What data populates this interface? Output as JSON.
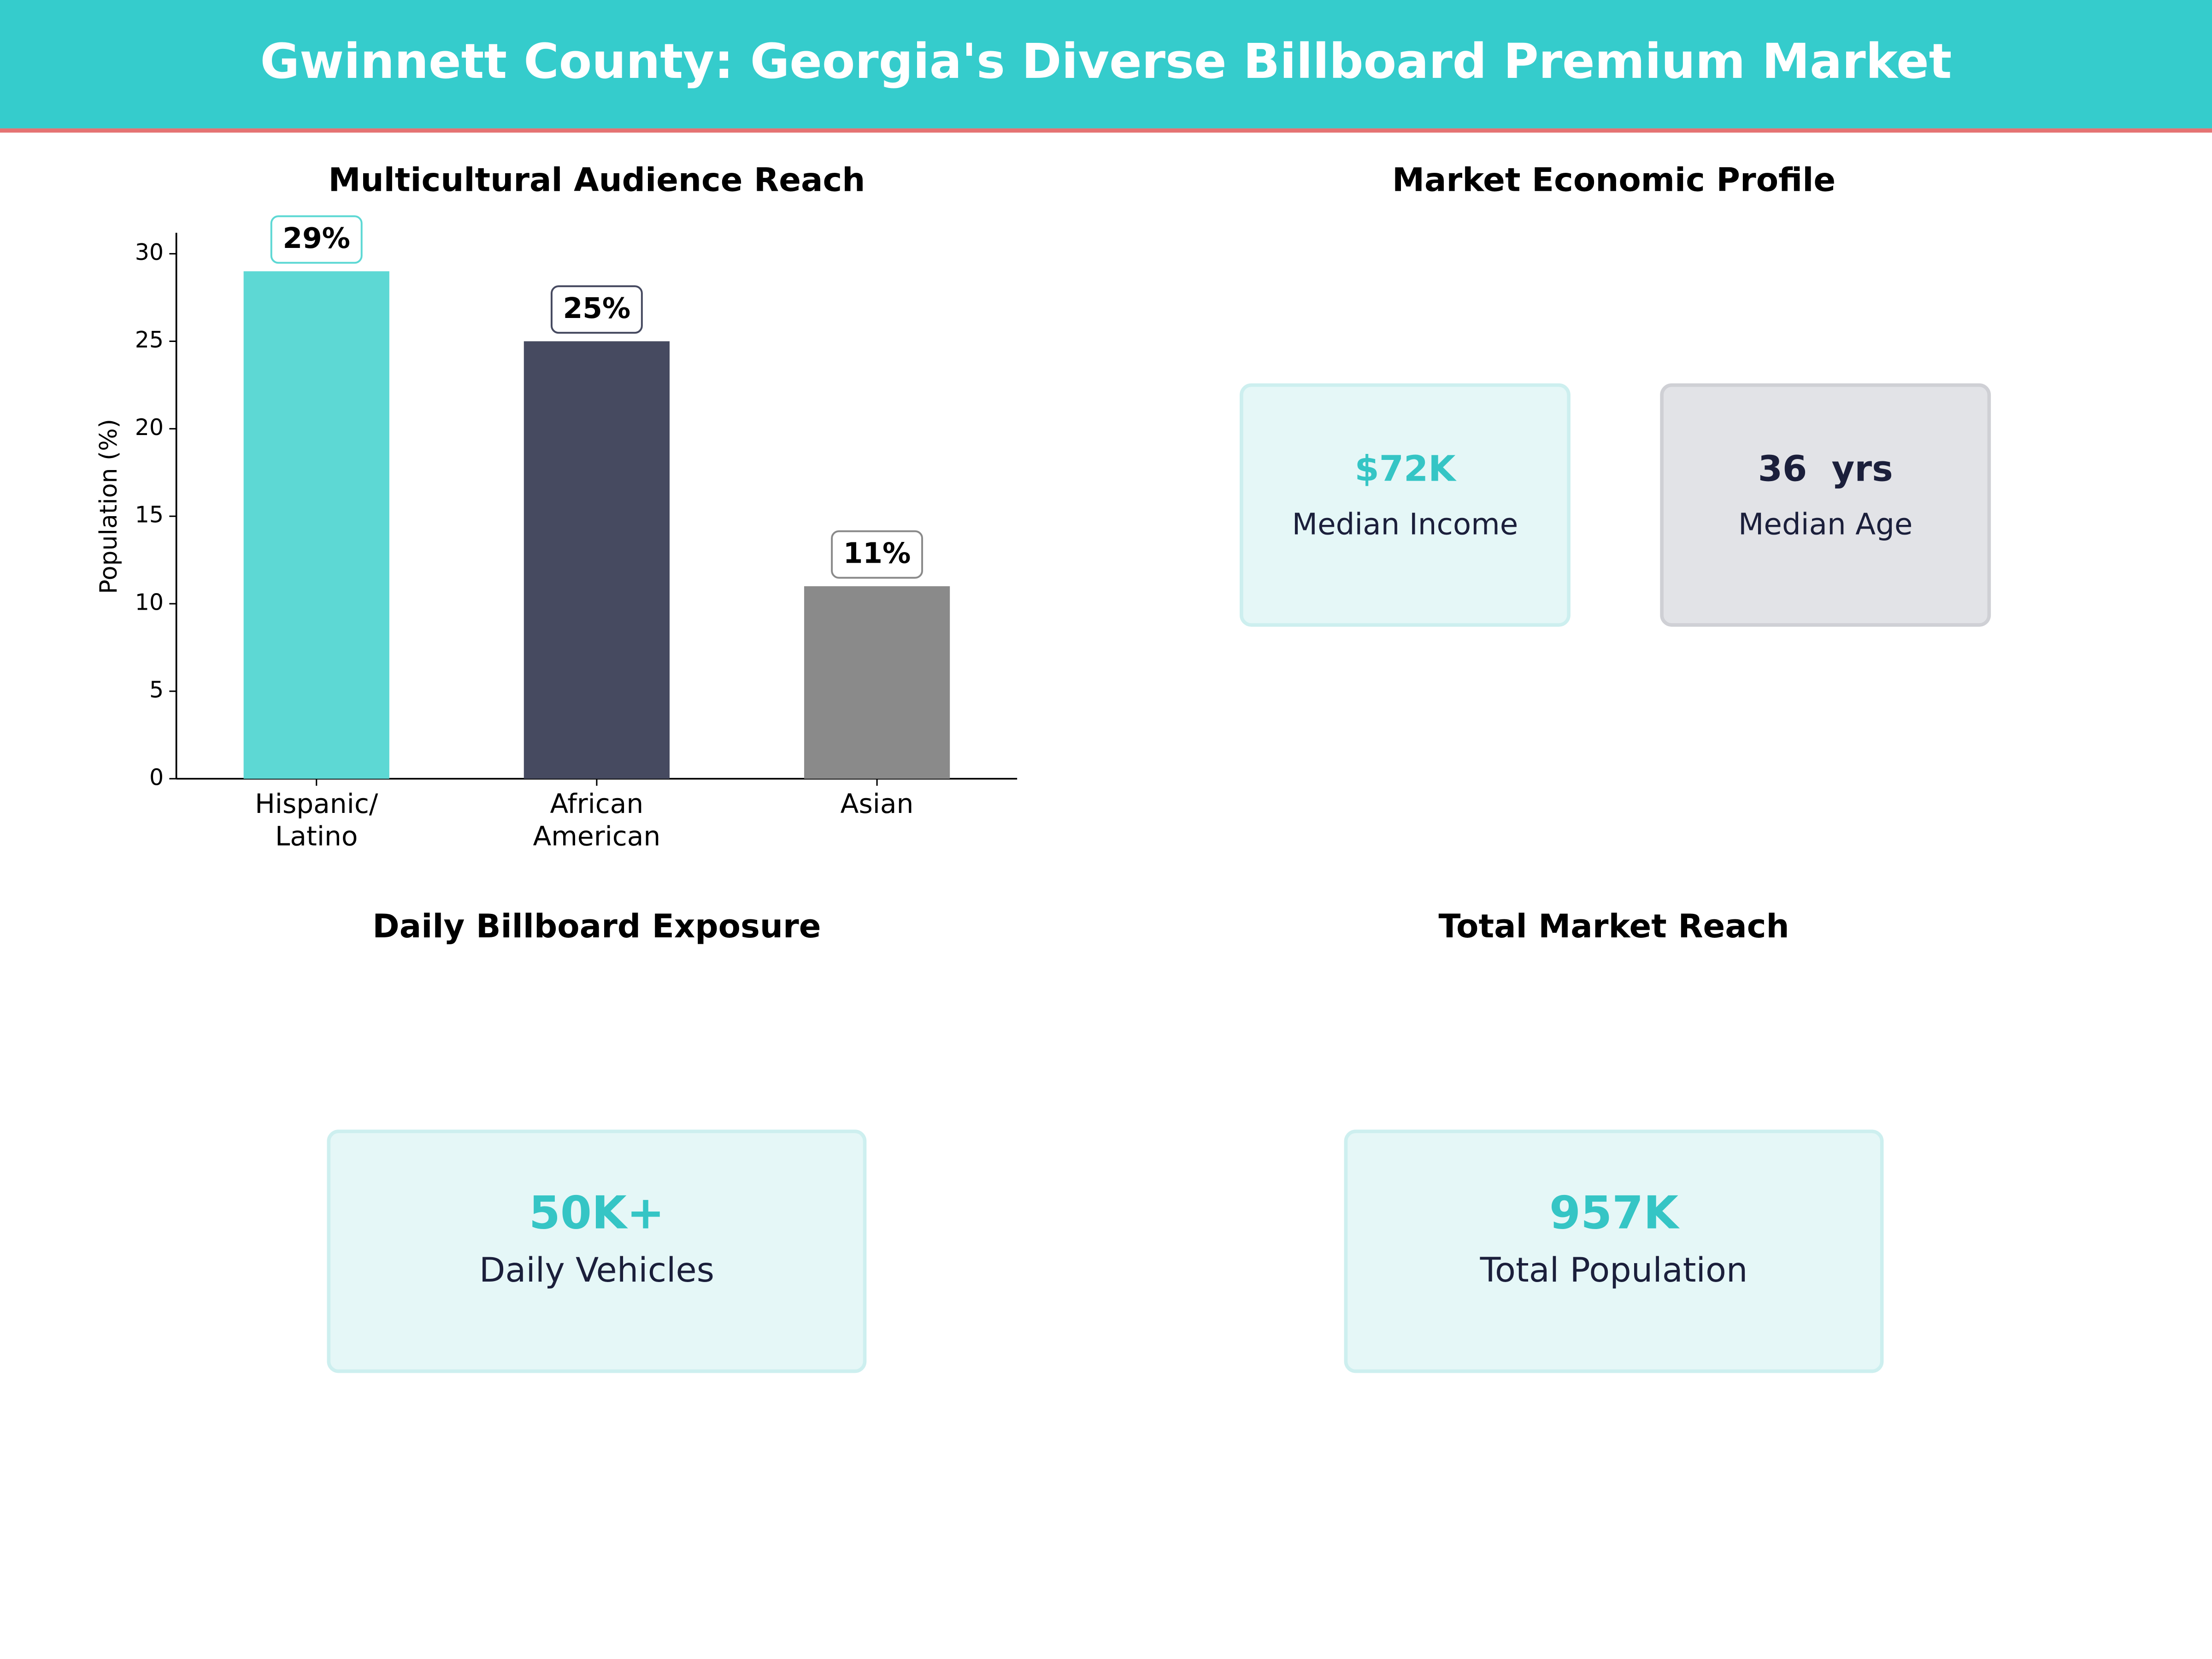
{
  "header": {
    "title": "Gwinnett County: Georgia's Diverse Billboard Premium Market"
  },
  "chart_data": {
    "type": "bar",
    "title": "Multicultural Audience Reach",
    "categories": [
      "Hispanic/\nLatino",
      "African\nAmerican",
      "Asian"
    ],
    "values": [
      29,
      25,
      11
    ],
    "value_labels": [
      "29%",
      "25%",
      "11%"
    ],
    "colors": [
      "#5DD8D4",
      "#464A60",
      "#8A8A8A"
    ],
    "ylabel": "Population (%)",
    "ylim": [
      0,
      31.2
    ],
    "yticks": [
      0,
      5,
      10,
      15,
      20,
      25,
      30
    ]
  },
  "panels": [
    {
      "title": "Market Economic Profile",
      "cards": [
        {
          "value": "$72K",
          "label": "Median Income"
        },
        {
          "value": "36  yrs",
          "label": "Median Age"
        }
      ]
    },
    {
      "title": "Daily Billboard Exposure",
      "cards": [
        {
          "value": "50K+",
          "label": "Daily Vehicles"
        }
      ]
    },
    {
      "title": "Total Market Reach",
      "cards": [
        {
          "value": "957K",
          "label": "Total Population"
        }
      ]
    }
  ]
}
